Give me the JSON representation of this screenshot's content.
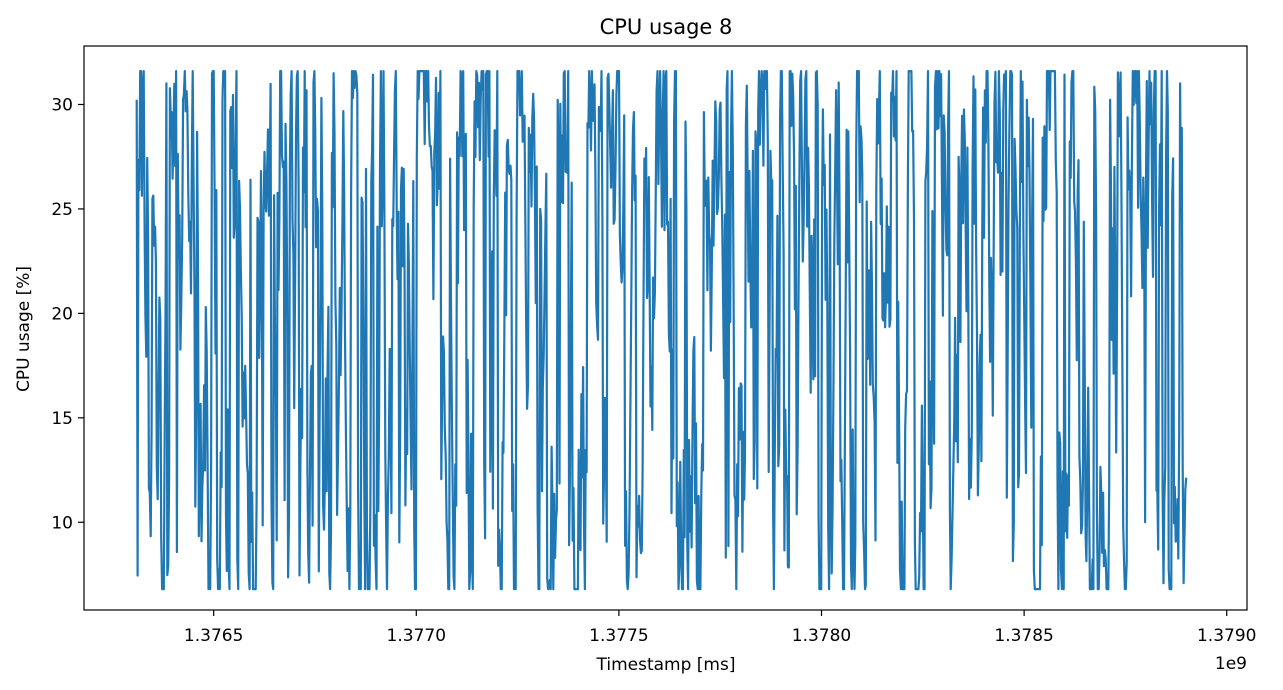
{
  "chart_data": {
    "type": "line",
    "title": "CPU usage 8",
    "xlabel": "Timestamp [ms]",
    "ylabel": "CPU usage [%]",
    "x_offset_label": "1e9",
    "xlim": [
      1.37618,
      1.37905
    ],
    "ylim": [
      5.8,
      32.8
    ],
    "x_ticks": [
      1.3765,
      1.377,
      1.3775,
      1.378,
      1.3785,
      1.379
    ],
    "x_tick_labels": [
      "1.3765",
      "1.3770",
      "1.3775",
      "1.3780",
      "1.3785",
      "1.3790"
    ],
    "y_ticks": [
      10,
      15,
      20,
      25,
      30
    ],
    "y_tick_labels": [
      "10",
      "15",
      "20",
      "25",
      "30"
    ],
    "grid": false,
    "series": [
      {
        "color": "#1f77b4",
        "x_range": [
          1.37631,
          1.3789
        ],
        "points_estimated": 1200,
        "y_min": 6.8,
        "y_max": 31.6,
        "note_values": "dense noisy signal oscillating mostly between 8 and 31"
      }
    ]
  }
}
